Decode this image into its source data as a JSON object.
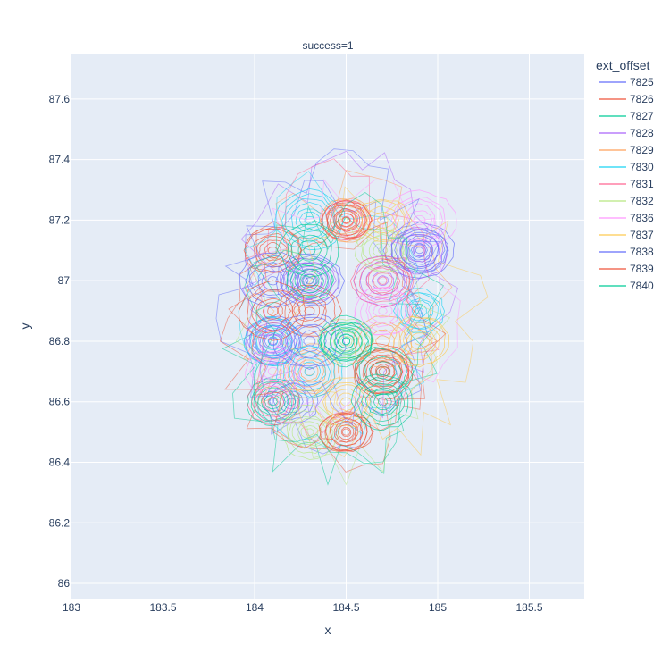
{
  "chart_data": {
    "type": "contour",
    "subplot_title": "success=1",
    "xlabel": "x",
    "ylabel": "y",
    "xlim": [
      183,
      185.8
    ],
    "ylim": [
      85.95,
      87.75
    ],
    "xticks": [
      183,
      183.5,
      184,
      184.5,
      185,
      185.5
    ],
    "xtick_labels": [
      "183",
      "183.5",
      "184",
      "184.5",
      "185",
      "185.5"
    ],
    "yticks": [
      86,
      86.2,
      86.4,
      86.6,
      86.8,
      87,
      87.2,
      87.4,
      87.6
    ],
    "ytick_labels": [
      "86",
      "86.2",
      "86.4",
      "86.6",
      "86.8",
      "87",
      "87.2",
      "87.4",
      "87.6"
    ],
    "grid": true,
    "legend_title": "ext_offset",
    "legend_position": "top-right",
    "series": [
      {
        "name": "7825",
        "color": "#636efa",
        "centers": [
          [
            184.1,
            86.8
          ],
          [
            184.3,
            87.0
          ],
          [
            184.9,
            87.1
          ],
          [
            184.2,
            86.6
          ]
        ]
      },
      {
        "name": "7826",
        "color": "#ef553b",
        "centers": [
          [
            184.1,
            87.1
          ],
          [
            184.5,
            86.5
          ],
          [
            184.7,
            86.7
          ],
          [
            184.3,
            86.9
          ]
        ]
      },
      {
        "name": "7827",
        "color": "#00cc96",
        "centers": [
          [
            184.3,
            87.0
          ],
          [
            184.7,
            86.7
          ],
          [
            184.1,
            86.6
          ],
          [
            184.5,
            86.8
          ]
        ]
      },
      {
        "name": "7828",
        "color": "#ab63fa",
        "centers": [
          [
            184.9,
            87.1
          ],
          [
            184.3,
            87.0
          ],
          [
            184.1,
            86.8
          ],
          [
            184.7,
            87.0
          ]
        ]
      },
      {
        "name": "7829",
        "color": "#ffa15a",
        "centers": [
          [
            184.7,
            86.8
          ],
          [
            184.5,
            87.2
          ],
          [
            184.3,
            86.7
          ]
        ]
      },
      {
        "name": "7830",
        "color": "#19d3f3",
        "centers": [
          [
            184.3,
            87.2
          ],
          [
            184.1,
            86.8
          ],
          [
            184.3,
            86.7
          ],
          [
            184.9,
            86.9
          ]
        ]
      },
      {
        "name": "7831",
        "color": "#ff6692",
        "centers": [
          [
            184.5,
            87.2
          ],
          [
            184.7,
            87.0
          ],
          [
            184.1,
            86.6
          ]
        ]
      },
      {
        "name": "7832",
        "color": "#b6e880",
        "centers": [
          [
            184.5,
            86.8
          ],
          [
            184.3,
            86.5
          ],
          [
            184.7,
            87.1
          ]
        ]
      },
      {
        "name": "7836",
        "color": "#ff97ff",
        "centers": [
          [
            184.9,
            87.2
          ],
          [
            184.7,
            86.9
          ],
          [
            184.1,
            86.7
          ]
        ]
      },
      {
        "name": "7837",
        "color": "#fecb52",
        "centers": [
          [
            184.7,
            87.2
          ],
          [
            184.5,
            86.6
          ],
          [
            184.9,
            86.8
          ]
        ]
      },
      {
        "name": "7838",
        "color": "#636efa",
        "centers": [
          [
            184.9,
            87.1
          ],
          [
            184.3,
            86.8
          ],
          [
            184.1,
            87.0
          ]
        ]
      },
      {
        "name": "7839",
        "color": "#ef553b",
        "centers": [
          [
            184.5,
            86.5
          ],
          [
            184.1,
            86.9
          ],
          [
            184.7,
            86.7
          ],
          [
            184.5,
            87.2
          ]
        ]
      },
      {
        "name": "7840",
        "color": "#00cc96",
        "centers": [
          [
            184.3,
            87.1
          ],
          [
            184.5,
            86.8
          ],
          [
            184.7,
            86.6
          ]
        ]
      }
    ]
  }
}
